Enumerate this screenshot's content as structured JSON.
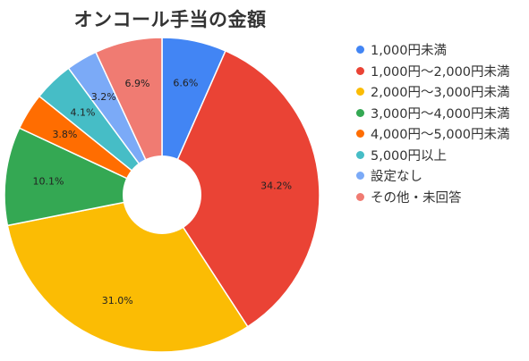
{
  "chart_data": {
    "type": "pie",
    "title": "オンコール手当の金額",
    "donut": true,
    "legend_position": "right",
    "slices": [
      {
        "label": "1,000円未満",
        "value": 6.6,
        "display": "6.6%",
        "color": "#4285F4"
      },
      {
        "label": "1,000円〜2,000円未満",
        "value": 34.2,
        "display": "34.2%",
        "color": "#EA4335"
      },
      {
        "label": "2,000円〜3,000円未満",
        "value": 31.0,
        "display": "31.0%",
        "color": "#FBBC04"
      },
      {
        "label": "3,000円〜4,000円未満",
        "value": 10.1,
        "display": "10.1%",
        "color": "#34A853"
      },
      {
        "label": "4,000円〜5,000円未満",
        "value": 3.8,
        "display": "3.8%",
        "color": "#FF6D01"
      },
      {
        "label": "5,000円以上",
        "value": 4.1,
        "display": "4.1%",
        "color": "#46BDC6"
      },
      {
        "label": "設定なし",
        "value": 3.2,
        "display": "3.2%",
        "color": "#7BAAF7"
      },
      {
        "label": "その他・未回答",
        "value": 6.9,
        "display": "6.9%",
        "color": "#F07B72"
      }
    ]
  }
}
